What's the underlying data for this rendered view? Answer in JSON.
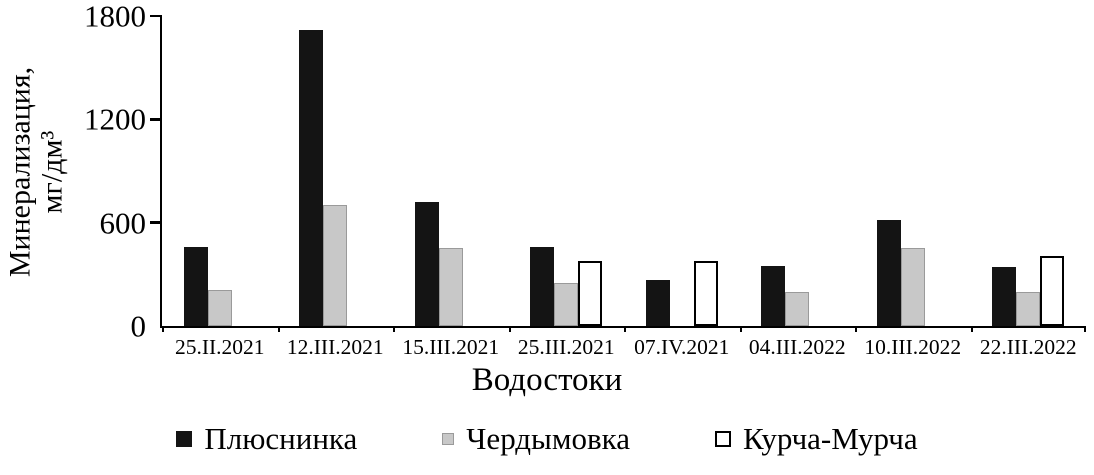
{
  "chart_data": {
    "type": "bar",
    "categories": [
      "25.II.2021",
      "12.III.2021",
      "15.III.2021",
      "25.III.2021",
      "07.IV.2021",
      "04.III.2022",
      "10.III.2022",
      "22.III.2022"
    ],
    "series": [
      {
        "name": "Плюснинка",
        "fill": "#141414",
        "edge": "#141414",
        "values": [
          460,
          1720,
          720,
          460,
          270,
          350,
          615,
          345
        ]
      },
      {
        "name": "Чердымовка",
        "fill": "#c8c8c8",
        "edge": "#9a9a9a",
        "values": [
          210,
          700,
          455,
          250,
          0,
          200,
          455,
          200
        ]
      },
      {
        "name": "Курча-Мурча",
        "fill": "#ffffff",
        "edge": "#000000",
        "values": [
          0,
          0,
          0,
          380,
          380,
          0,
          0,
          405
        ]
      }
    ],
    "ylabel_line1": "Минерализация,",
    "ylabel_line2": "мг/дм³",
    "xlabel": "Водостоки",
    "ylim": [
      0,
      1800
    ],
    "yticks": [
      0,
      600,
      1200,
      1800
    ],
    "grid": false,
    "legend_position": "bottom",
    "axis_color": "#000000",
    "background": "#ffffff"
  }
}
